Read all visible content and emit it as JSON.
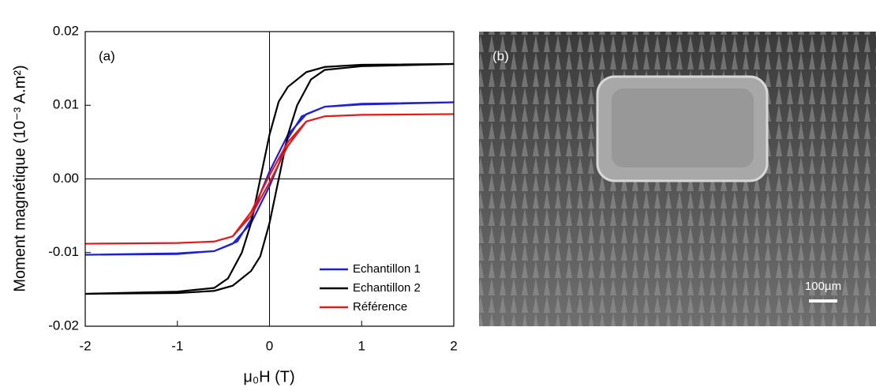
{
  "chart_data": {
    "type": "line",
    "annotation": "(a)",
    "x_label": "μ₀H (T)",
    "y_label": "Moment magnétique (10⁻³ A.m²)",
    "xlim": [
      -2,
      2
    ],
    "xticks": [
      -2,
      -1,
      0,
      1,
      2
    ],
    "ylim": [
      -0.02,
      0.02
    ],
    "yticks": [
      0.02,
      0.01,
      {
        "value": 0,
        "label": "0.00"
      },
      -0.01,
      -0.02
    ],
    "zero_lines": true,
    "legend": "lower right",
    "series": [
      {
        "name": "Echantillon 1",
        "color": "#1f1fd6",
        "x": [
          2,
          1,
          0.6,
          0.4,
          0.2,
          0,
          -0.1,
          -0.2,
          -0.35,
          -0.6,
          -1,
          -2,
          -1,
          -0.6,
          -0.4,
          -0.2,
          0,
          0.1,
          0.2,
          0.35,
          0.6,
          1,
          2
        ],
        "values": [
          0.0104,
          0.0102,
          0.0098,
          0.0088,
          0.006,
          0.001,
          -0.002,
          -0.0055,
          -0.0085,
          -0.0098,
          -0.0101,
          -0.0103,
          -0.0102,
          -0.0098,
          -0.0088,
          -0.006,
          -0.001,
          0.002,
          0.0055,
          0.0085,
          0.0098,
          0.0101,
          0.0104
        ]
      },
      {
        "name": "Echantillon 2",
        "color": "#000000",
        "x": [
          2,
          1,
          0.6,
          0.4,
          0.2,
          0.1,
          0,
          -0.1,
          -0.2,
          -0.3,
          -0.45,
          -0.6,
          -1,
          -2,
          -1,
          -0.6,
          -0.4,
          -0.2,
          -0.1,
          0,
          0.1,
          0.2,
          0.3,
          0.45,
          0.6,
          1,
          2
        ],
        "values": [
          0.0156,
          0.0155,
          0.0152,
          0.0145,
          0.0125,
          0.0105,
          0.006,
          0.0,
          -0.006,
          -0.01,
          -0.0135,
          -0.0148,
          -0.0153,
          -0.0156,
          -0.0155,
          -0.0152,
          -0.0145,
          -0.0125,
          -0.0105,
          -0.006,
          0.0,
          0.006,
          0.01,
          0.0135,
          0.0148,
          0.0153,
          0.0156
        ]
      },
      {
        "name": "Référence",
        "color": "#e01b1b",
        "x": [
          2,
          1,
          0.6,
          0.4,
          0.2,
          0,
          -0.2,
          -0.4,
          -0.6,
          -1,
          -2,
          -1,
          -0.6,
          -0.4,
          -0.2,
          0,
          0.2,
          0.4,
          0.6,
          1,
          2
        ],
        "values": [
          0.0088,
          0.0087,
          0.0085,
          0.0078,
          0.005,
          0.0005,
          -0.0045,
          -0.0078,
          -0.0085,
          -0.0087,
          -0.0088,
          -0.0087,
          -0.0085,
          -0.0078,
          -0.005,
          -0.0005,
          0.0045,
          0.0078,
          0.0085,
          0.0087,
          0.0088
        ]
      }
    ]
  },
  "image": {
    "label": "(b)",
    "scale_bar": "100µm"
  }
}
